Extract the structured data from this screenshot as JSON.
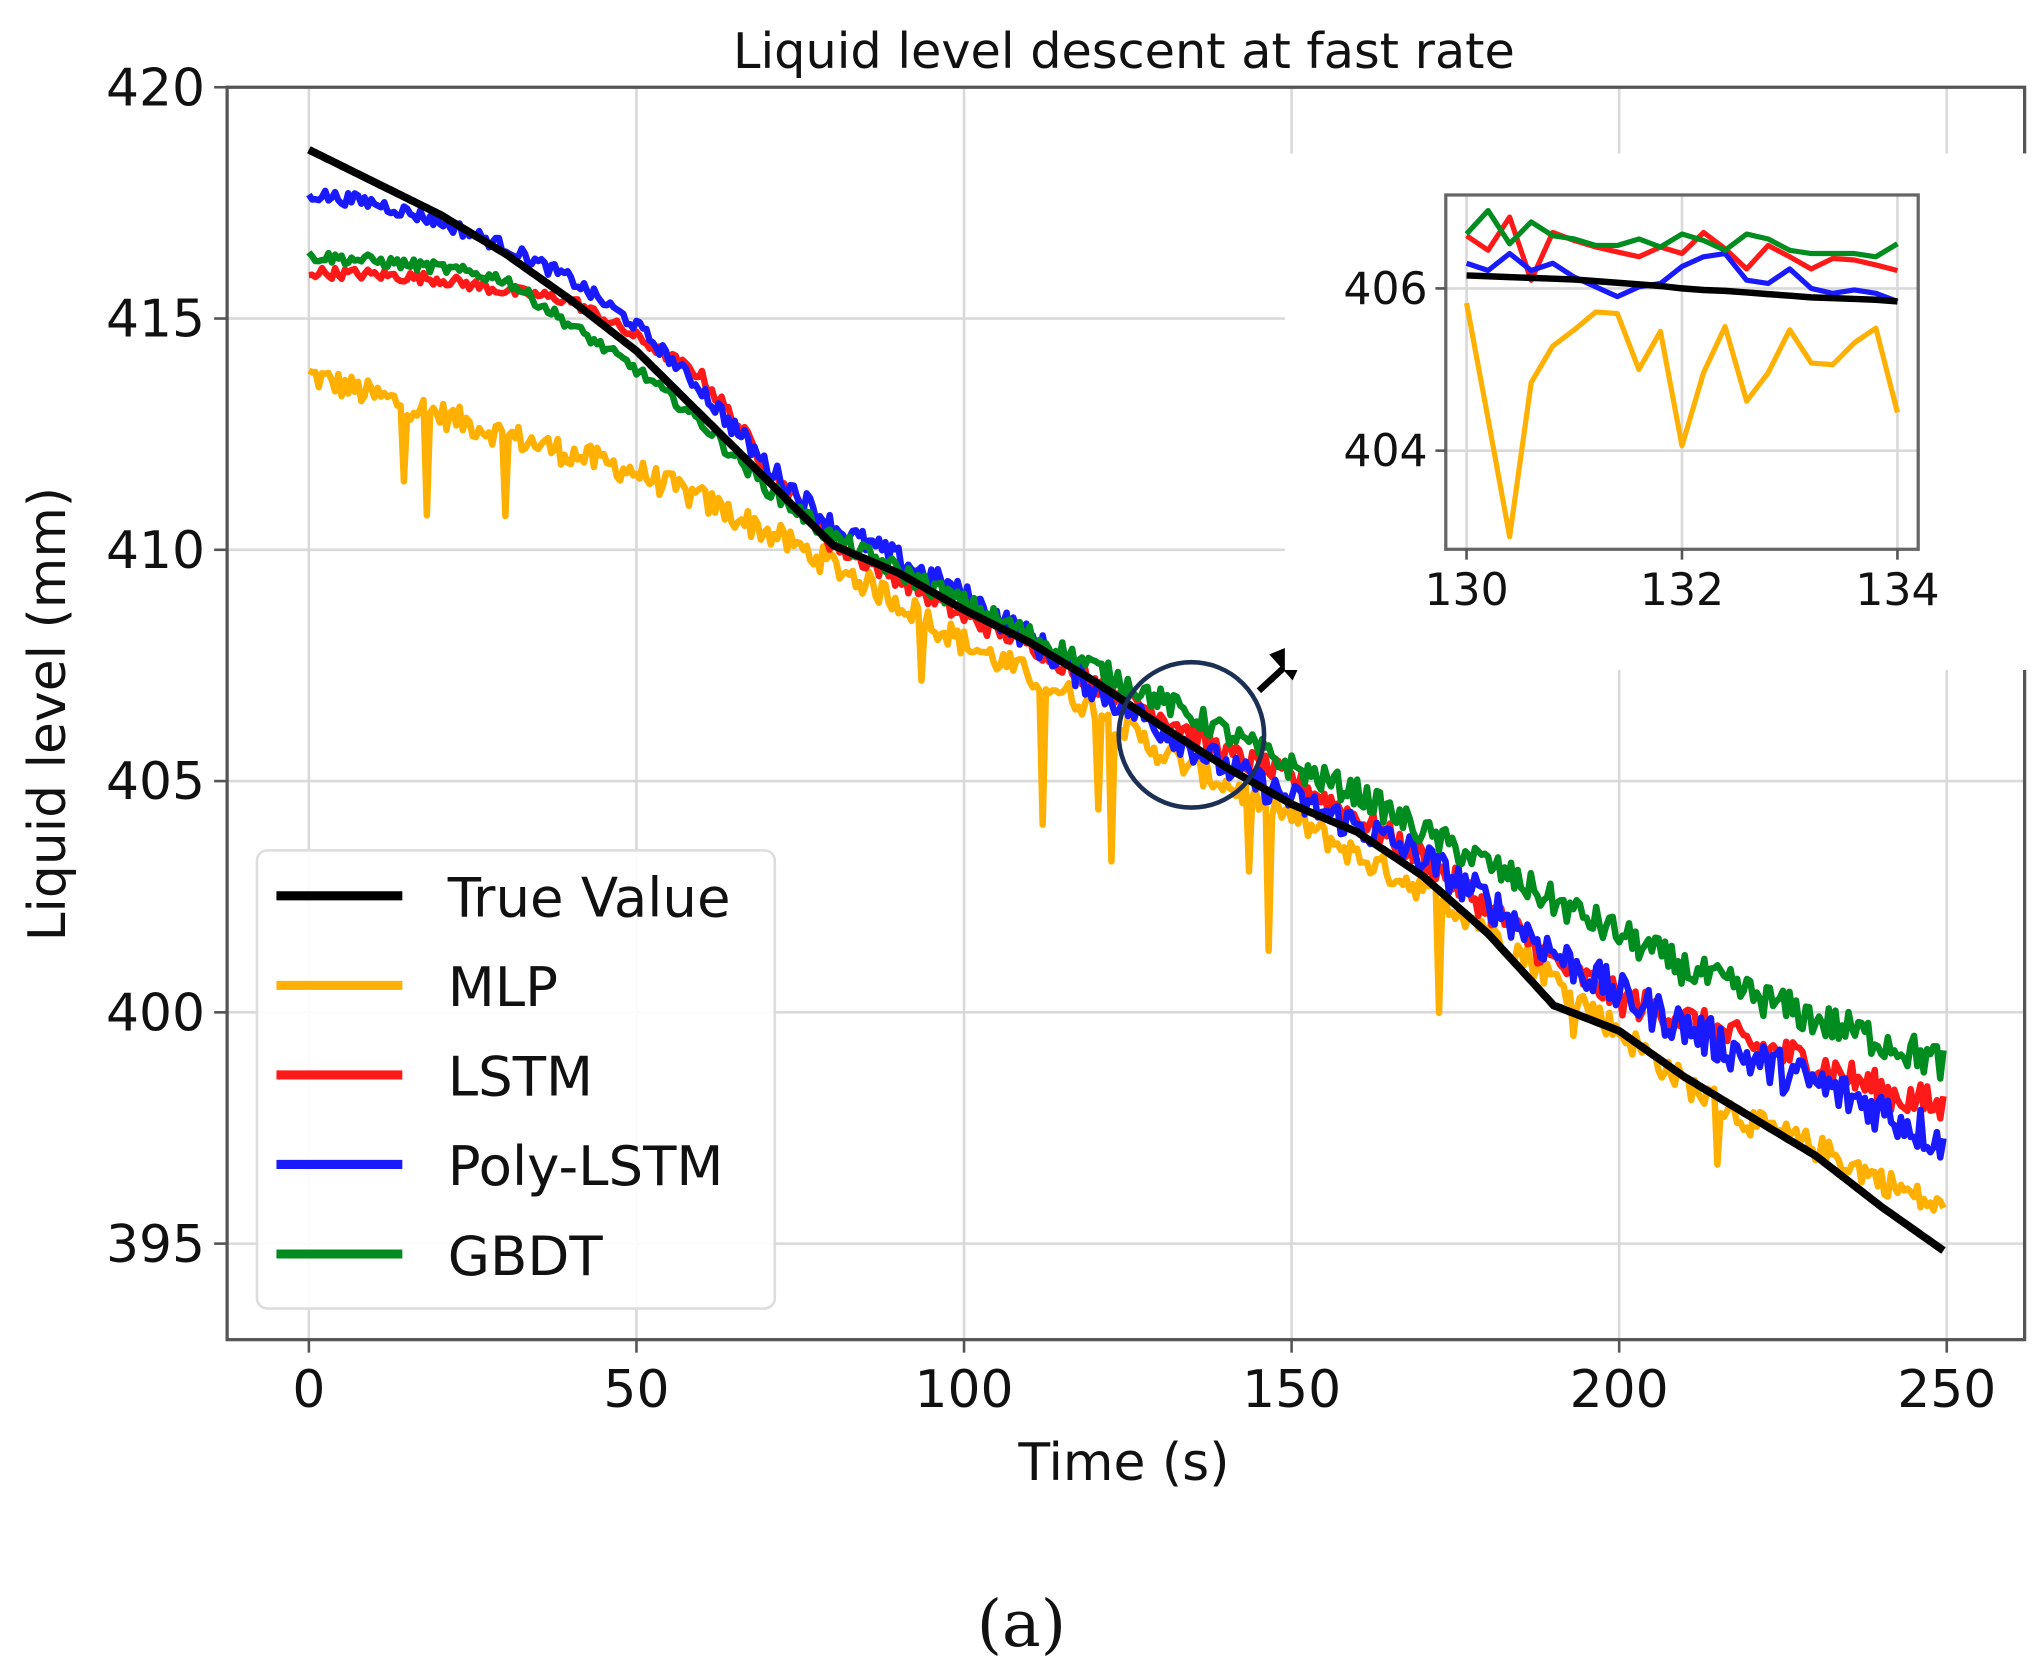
{
  "chart_data": {
    "type": "line",
    "title": "Liquid level descent at fast rate",
    "xlabel": "Time (s)",
    "ylabel": "Liquid level (mm)",
    "xlim": [
      -12,
      262
    ],
    "ylim": [
      393.0,
      420
    ],
    "xticks": [
      "0",
      "50",
      "100",
      "150",
      "200",
      "250"
    ],
    "yticks": [
      "395",
      "400",
      "405",
      "410",
      "415",
      "420"
    ],
    "grid": true,
    "legend_position": "lower-left",
    "caption": "(a)",
    "x": [
      0,
      10,
      20,
      30,
      40,
      50,
      60,
      70,
      80,
      90,
      100,
      110,
      120,
      130,
      140,
      150,
      160,
      170,
      180,
      190,
      200,
      210,
      220,
      230,
      240,
      250
    ],
    "series": [
      {
        "name": "True Value",
        "color": "#000000",
        "values": [
          418.65,
          417.95,
          417.25,
          416.4,
          415.4,
          414.3,
          412.9,
          411.5,
          410.1,
          409.5,
          408.7,
          408.0,
          407.15,
          406.2,
          405.3,
          404.5,
          403.9,
          402.95,
          401.7,
          400.15,
          399.6,
          398.6,
          397.75,
          396.9,
          395.8,
          394.8
        ]
      },
      {
        "name": "MLP",
        "color": "#FFB000",
        "values": [
          413.9,
          413.45,
          413.05,
          412.6,
          412.2,
          411.8,
          411.2,
          410.5,
          409.8,
          409.0,
          408.1,
          407.4,
          406.7,
          405.75,
          405.05,
          404.35,
          403.5,
          402.8,
          401.95,
          400.85,
          399.7,
          398.6,
          397.75,
          397.2,
          396.5,
          395.8
        ]
      },
      {
        "name": "LSTM",
        "color": "#FF1A1A",
        "values": [
          416.0,
          415.95,
          415.85,
          415.6,
          415.4,
          414.6,
          413.75,
          411.8,
          410.1,
          409.4,
          408.55,
          408.0,
          407.15,
          406.45,
          405.6,
          405.05,
          404.2,
          403.35,
          402.25,
          401.1,
          400.3,
          399.85,
          399.3,
          398.9,
          398.3,
          397.9
        ]
      },
      {
        "name": "Poly-LSTM",
        "color": "#1A1AFF",
        "values": [
          417.7,
          417.5,
          417.1,
          416.55,
          415.85,
          414.85,
          413.45,
          411.8,
          410.5,
          409.8,
          409.0,
          408.1,
          407.0,
          406.15,
          405.3,
          404.6,
          404.05,
          403.35,
          402.4,
          401.3,
          400.4,
          399.7,
          399.0,
          398.45,
          397.9,
          397.2
        ]
      },
      {
        "name": "GBDT",
        "color": "#008C1E",
        "values": [
          416.35,
          416.25,
          416.1,
          415.85,
          414.85,
          413.9,
          412.75,
          411.35,
          410.25,
          409.55,
          408.85,
          408.15,
          407.45,
          406.75,
          406.05,
          405.3,
          404.75,
          403.9,
          403.2,
          402.4,
          401.7,
          400.95,
          400.4,
          399.85,
          399.4,
          398.85
        ]
      }
    ],
    "inset": {
      "xlim": [
        129.8,
        134.2
      ],
      "ylim": [
        402.78,
        407.15
      ],
      "xticks": [
        "130",
        "132",
        "134"
      ],
      "yticks": [
        "404",
        "406"
      ],
      "x": [
        130,
        130.2,
        130.4,
        130.6,
        130.8,
        131,
        131.2,
        131.4,
        131.6,
        131.8,
        132,
        132.2,
        132.4,
        132.6,
        132.8,
        133,
        133.2,
        133.4,
        133.6,
        133.8,
        134
      ],
      "series": [
        {
          "name": "MLP",
          "values": [
            405.82,
            404.39,
            402.94,
            404.84,
            405.29,
            405.49,
            405.71,
            405.69,
            405.0,
            405.47,
            404.06,
            404.96,
            405.53,
            404.61,
            404.96,
            405.49,
            405.08,
            405.06,
            405.33,
            405.51,
            404.47
          ]
        },
        {
          "name": "LSTM",
          "values": [
            406.65,
            406.47,
            406.88,
            406.1,
            406.69,
            406.59,
            406.51,
            406.45,
            406.39,
            406.51,
            406.43,
            406.69,
            406.49,
            406.24,
            406.53,
            406.39,
            406.24,
            406.37,
            406.35,
            406.29,
            406.22
          ]
        },
        {
          "name": "Poly-LSTM",
          "values": [
            406.31,
            406.22,
            406.43,
            406.22,
            406.31,
            406.14,
            406.02,
            405.9,
            406.02,
            406.06,
            406.27,
            406.39,
            406.43,
            406.1,
            406.06,
            406.24,
            406.0,
            405.94,
            405.98,
            405.94,
            405.84
          ]
        },
        {
          "name": "GBDT",
          "values": [
            406.67,
            406.96,
            406.55,
            406.82,
            406.65,
            406.61,
            406.53,
            406.53,
            406.61,
            406.51,
            406.67,
            406.59,
            406.47,
            406.67,
            406.61,
            406.47,
            406.43,
            406.43,
            406.43,
            406.39,
            406.55
          ]
        },
        {
          "name": "True Value",
          "values": [
            406.16,
            406.15,
            406.14,
            406.13,
            406.12,
            406.11,
            406.09,
            406.07,
            406.05,
            406.03,
            406.0,
            405.98,
            405.97,
            405.95,
            405.93,
            405.91,
            405.89,
            405.88,
            405.87,
            405.86,
            405.84
          ]
        }
      ]
    }
  }
}
